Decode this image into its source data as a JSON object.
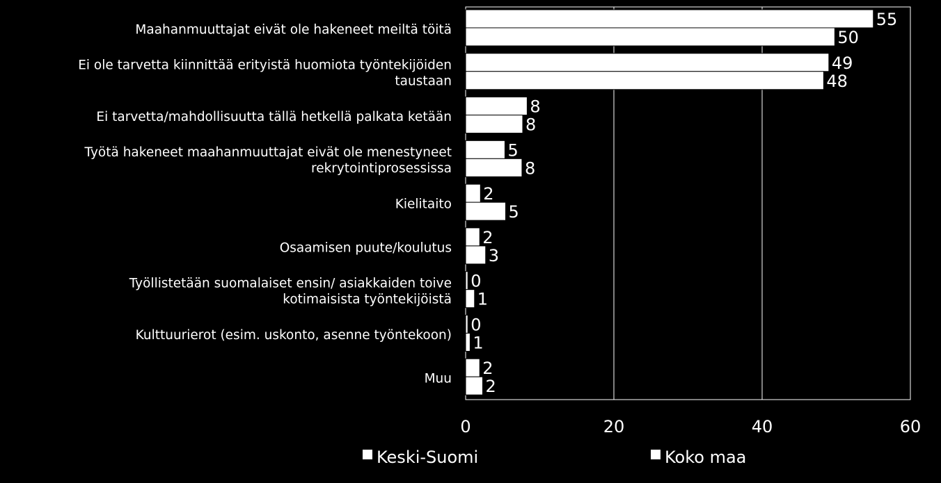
{
  "colors": {
    "background": "#000000",
    "bar_fill": "#ffffff",
    "bar_stroke": "#000000",
    "text": "#ffffff",
    "grid": "#ffffff"
  },
  "chart_data": {
    "type": "bar",
    "orientation": "horizontal",
    "categories": [
      "Maahanmuuttajat eivät ole hakeneet meiltä töitä",
      "Ei ole tarvetta kiinnittää erityistä huomiota työntekijöiden taustaan",
      "Ei tarvetta/mahdollisuutta tällä hetkellä palkata ketään",
      "Työtä hakeneet maahanmuuttajat eivät ole menestyneet rekrytointiprosessissa",
      "Kielitaito",
      "Osaamisen puute/koulutus",
      "Työllistetään suomalaiset ensin/ asiakkaiden toive kotimaisista työntekijöistä",
      "Kulttuurierot (esim. uskonto, asenne työntekoon)",
      "Muu"
    ],
    "category_lines": [
      [
        "Maahanmuuttajat eivät ole hakeneet meiltä töitä"
      ],
      [
        "Ei ole tarvetta kiinnittää erityistä huomiota työntekijöiden",
        "taustaan"
      ],
      [
        "Ei tarvetta/mahdollisuutta tällä hetkellä palkata ketään"
      ],
      [
        "Työtä hakeneet maahanmuuttajat eivät ole menestyneet",
        "rekrytointiprosessissa"
      ],
      [
        "Kielitaito"
      ],
      [
        "Osaamisen puute/koulutus"
      ],
      [
        "Työllistetään suomalaiset ensin/ asiakkaiden toive",
        "kotimaisista työntekijöistä"
      ],
      [
        "Kulttuurierot (esim. uskonto, asenne työntekoon)"
      ],
      [
        "Muu"
      ]
    ],
    "series": [
      {
        "name": "Keski-Suomi",
        "values": [
          55,
          49,
          8,
          5,
          2,
          2,
          0,
          0,
          2
        ],
        "plot_values": [
          55,
          49,
          8.3,
          5.3,
          2,
          1.9,
          0.3,
          0.3,
          1.9
        ]
      },
      {
        "name": "Koko maa",
        "values": [
          50,
          48,
          8,
          8,
          5,
          3,
          1,
          1,
          2
        ],
        "plot_values": [
          49.8,
          48.3,
          7.7,
          7.6,
          5.4,
          2.7,
          1.2,
          0.6,
          2.3
        ]
      }
    ],
    "xlim": [
      0,
      60
    ],
    "xticks": [
      "0",
      "20",
      "40",
      "60"
    ],
    "xtick_values": [
      0,
      20,
      40,
      60
    ],
    "grid": "vertical",
    "legend": "bottom",
    "title": "",
    "xlabel": "",
    "ylabel": ""
  }
}
